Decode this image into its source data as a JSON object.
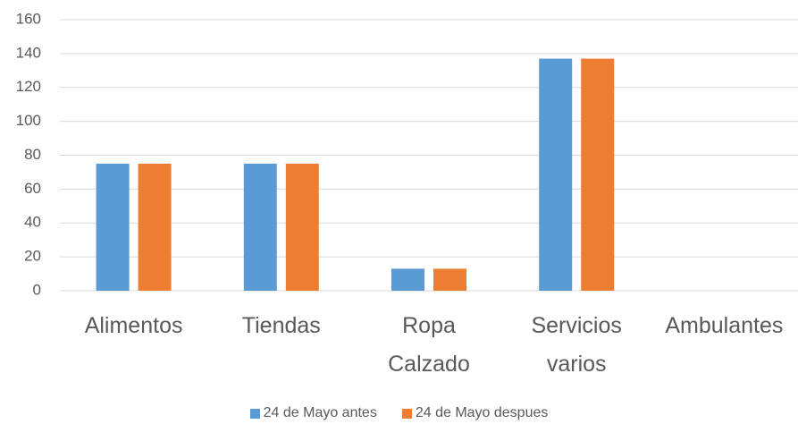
{
  "chart_data": {
    "type": "bar",
    "categories": [
      "Alimentos",
      "Tiendas",
      "Ropa Calzado",
      "Servicios varios",
      "Ambulantes"
    ],
    "series": [
      {
        "name": "24 de Mayo antes",
        "color": "#5b9bd5",
        "values": [
          75,
          75,
          13,
          137,
          0
        ]
      },
      {
        "name": "24 de Mayo despues",
        "color": "#ed7d31",
        "values": [
          75,
          75,
          13,
          137,
          0
        ]
      }
    ],
    "ylim": [
      0,
      160
    ],
    "yticks": [
      0,
      20,
      40,
      60,
      80,
      100,
      120,
      140,
      160
    ],
    "grid": true,
    "legend": "bottom"
  }
}
